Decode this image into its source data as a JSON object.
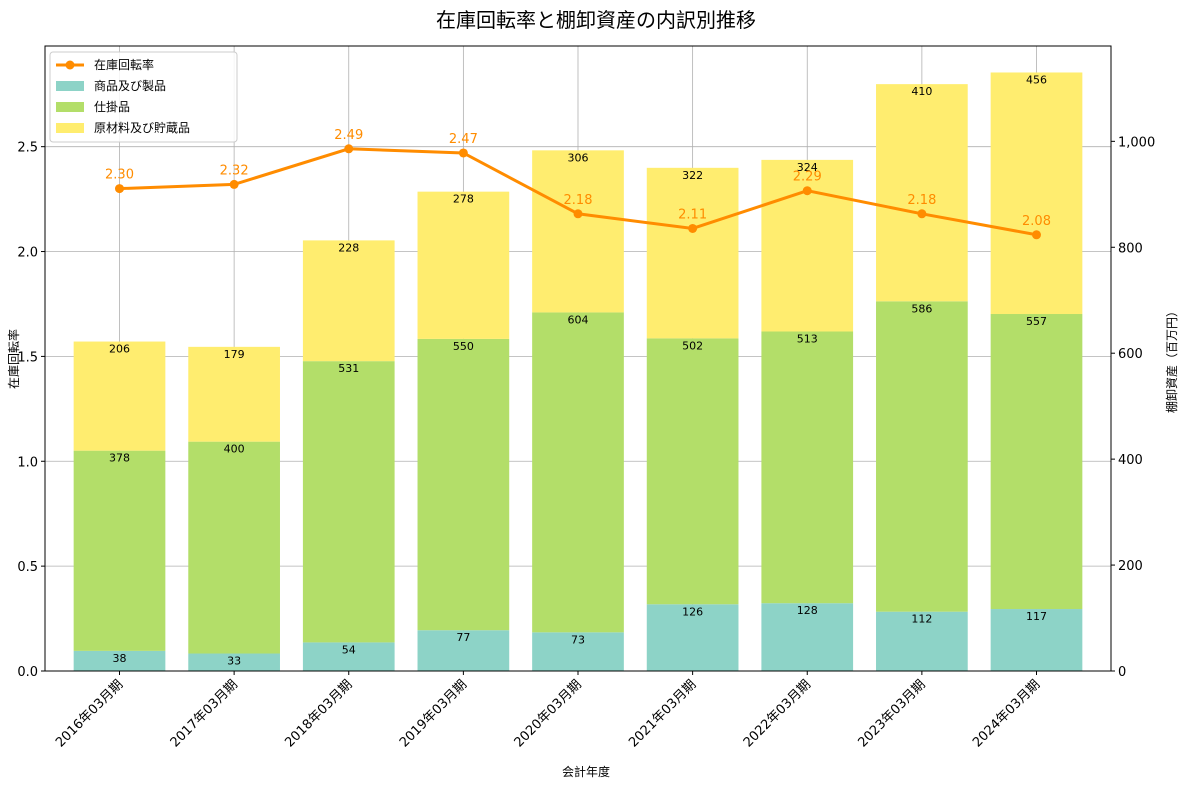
{
  "chart_data": {
    "type": "bar",
    "subtype": "stacked-bar-with-line-dual-axis",
    "title": "在庫回転率と棚卸資産の内訳別推移",
    "xlabel": "会計年度",
    "ylabel_left": "在庫回転率",
    "ylabel_right": "棚卸資産（百万円）",
    "ylim_left": [
      0,
      2.98
    ],
    "ylim_right": [
      0,
      1180
    ],
    "yticks_left": [
      "0.0",
      "0.5",
      "1.0",
      "1.5",
      "2.0",
      "2.5"
    ],
    "yticks_right": [
      "0",
      "200",
      "400",
      "600",
      "800",
      "1,000"
    ],
    "grid": true,
    "legend_position": "top-left",
    "categories": [
      "2016年03月期",
      "2017年03月期",
      "2018年03月期",
      "2019年03月期",
      "2020年03月期",
      "2021年03月期",
      "2022年03月期",
      "2023年03月期",
      "2024年03月期"
    ],
    "bar_series": [
      {
        "name": "商品及び製品",
        "color": "#8dd3c7",
        "values": [
          38,
          33,
          54,
          77,
          73,
          126,
          128,
          112,
          117
        ]
      },
      {
        "name": "仕掛品",
        "color": "#b3de69",
        "values": [
          378,
          400,
          531,
          550,
          604,
          502,
          513,
          586,
          557
        ]
      },
      {
        "name": "原材料及び貯蔵品",
        "color": "#ffed6f",
        "values": [
          206,
          179,
          228,
          278,
          306,
          322,
          324,
          410,
          456
        ]
      }
    ],
    "line_series": {
      "name": "在庫回転率",
      "color": "#ff8c00",
      "values": [
        2.3,
        2.32,
        2.49,
        2.47,
        2.18,
        2.11,
        2.29,
        2.18,
        2.08
      ],
      "labels": [
        "2.30",
        "2.32",
        "2.49",
        "2.47",
        "2.18",
        "2.11",
        "2.29",
        "2.18",
        "2.08"
      ]
    }
  }
}
